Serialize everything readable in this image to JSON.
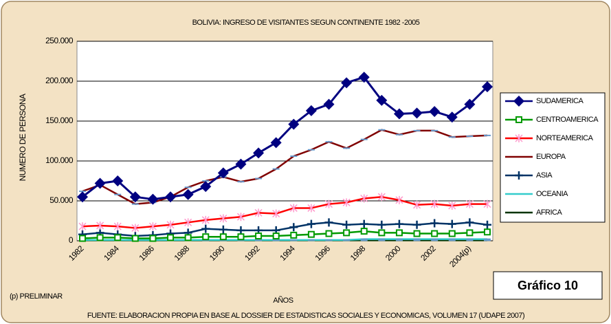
{
  "chart_data": {
    "type": "line",
    "title": "BOLIVIA: INGRESO DE VISITANTES SEGUN CONTINENTE 1982 -2005",
    "y_label": "NUMERO DE PERSONA",
    "x_label": "AÑOS",
    "note": "(p) PRELIMINAR",
    "badge": "Gráfico 10",
    "source": "FUENTE: ELABORACION PROPIA EN BASE AL DOSSIER DE ESTADISTICAS SOCIALES Y ECONOMICAS, VOLUMEN 17 (UDAPE 2007)",
    "categories": [
      "1982",
      null,
      "1984",
      null,
      "1986",
      null,
      "1988",
      null,
      "1990",
      null,
      "1992",
      null,
      "1994",
      null,
      "1996",
      null,
      "1998",
      null,
      "2000",
      null,
      "2002",
      null,
      "2004(p)",
      null
    ],
    "ylim": [
      0,
      250000
    ],
    "yticks": [
      0,
      {
        "value": 50000,
        "label": "50.000"
      },
      {
        "value": 100000,
        "label": "100.000"
      },
      {
        "value": 150000,
        "label": "150.000"
      },
      {
        "value": 200000,
        "label": "200.000"
      },
      {
        "value": 250000,
        "label": "250.000"
      }
    ],
    "grid": true,
    "legend": "right",
    "series": [
      {
        "name": "SUDAMERICA",
        "color": "#000080",
        "marker": "diamond",
        "values": [
          55000,
          72000,
          75000,
          55000,
          52000,
          55000,
          58000,
          68000,
          85000,
          96000,
          110000,
          123000,
          146000,
          163000,
          171000,
          198000,
          205000,
          176000,
          159000,
          160000,
          162000,
          155000,
          171000,
          193000
        ]
      },
      {
        "name": "CENTROAMERICA",
        "color": "#009900",
        "marker": "square",
        "values": [
          3000,
          4000,
          4000,
          3000,
          3000,
          4000,
          4000,
          5000,
          5000,
          5000,
          6000,
          6000,
          7000,
          8000,
          9000,
          10000,
          12000,
          10000,
          10000,
          9000,
          9000,
          9000,
          10000,
          11000
        ]
      },
      {
        "name": "NORTEAMERICA",
        "color": "#ff0000",
        "marker": "star",
        "values": [
          18000,
          19000,
          18000,
          16000,
          18000,
          20000,
          23000,
          26000,
          28000,
          30000,
          35000,
          34000,
          41000,
          41000,
          46000,
          48000,
          53000,
          55000,
          51000,
          45000,
          46000,
          44000,
          46000,
          46000
        ]
      },
      {
        "name": "EUROPA",
        "color": "#800000",
        "marker": "dash",
        "values": [
          62000,
          70000,
          58000,
          46000,
          48000,
          55000,
          67000,
          75000,
          80000,
          74000,
          78000,
          90000,
          106000,
          114000,
          124000,
          116000,
          127000,
          139000,
          133000,
          138000,
          138000,
          130000,
          131000,
          132000
        ]
      },
      {
        "name": "ASIA",
        "color": "#003366",
        "marker": "plus",
        "values": [
          8000,
          10000,
          8000,
          6000,
          7000,
          9000,
          10000,
          15000,
          14000,
          13000,
          13000,
          13000,
          17000,
          21000,
          23000,
          20000,
          21000,
          20000,
          21000,
          20000,
          22000,
          21000,
          23000,
          20000
        ]
      },
      {
        "name": "OCEANIA",
        "color": "#33cccc",
        "marker": "dash",
        "values": [
          1000,
          1000,
          1000,
          1000,
          1000,
          1000,
          1000,
          1000,
          1000,
          1000,
          1000,
          1000,
          1000,
          1000,
          1000,
          1000,
          2000,
          2000,
          2000,
          2000,
          2000,
          2000,
          2000,
          2000
        ]
      },
      {
        "name": "AFRICA",
        "color": "#003300",
        "marker": "dash",
        "values": [
          500,
          500,
          500,
          500,
          500,
          500,
          500,
          500,
          500,
          500,
          500,
          500,
          500,
          500,
          500,
          500,
          500,
          500,
          500,
          500,
          500,
          500,
          500,
          500
        ]
      }
    ]
  }
}
